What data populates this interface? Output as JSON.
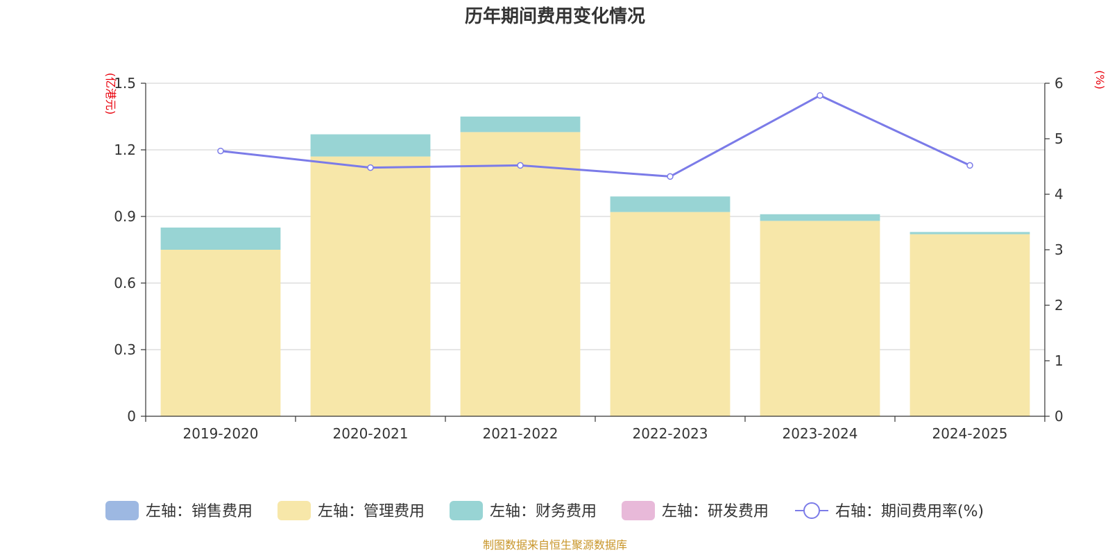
{
  "chart_data": {
    "type": "bar",
    "title": "历年期间费用变化情况",
    "categories": [
      "2019-2020",
      "2020-2021",
      "2021-2022",
      "2022-2023",
      "2023-2024",
      "2024-2025"
    ],
    "left_axis": {
      "unit": "(亿港元)",
      "ylim": [
        0,
        1.5
      ],
      "ticks": [
        "0",
        "0.3",
        "0.6",
        "0.9",
        "1.2",
        "1.5"
      ]
    },
    "right_axis": {
      "unit": "(%)",
      "ylim": [
        0,
        6
      ],
      "ticks": [
        "0",
        "1",
        "2",
        "3",
        "4",
        "5",
        "6"
      ]
    },
    "stacked": true,
    "grid": true,
    "legend_position": "bottom",
    "series": [
      {
        "name": "左轴：销售费用",
        "kind": "bar",
        "axis": "left",
        "color": "#9db8e2",
        "values": [
          0,
          0,
          0,
          0,
          0,
          0
        ]
      },
      {
        "name": "左轴：管理费用",
        "kind": "bar",
        "axis": "left",
        "color": "#f7e7a9",
        "values": [
          0.75,
          1.17,
          1.28,
          0.92,
          0.88,
          0.82
        ]
      },
      {
        "name": "左轴：财务费用",
        "kind": "bar",
        "axis": "left",
        "color": "#98d4d4",
        "values": [
          0.1,
          0.1,
          0.07,
          0.07,
          0.03,
          0.01
        ]
      },
      {
        "name": "左轴：研发费用",
        "kind": "bar",
        "axis": "left",
        "color": "#e8b9d9",
        "values": [
          0,
          0,
          0,
          0,
          0,
          0
        ]
      },
      {
        "name": "右轴：期间费用率(%)",
        "kind": "line",
        "axis": "right",
        "color": "#7b7be8",
        "values": [
          4.78,
          4.48,
          4.52,
          4.32,
          5.78,
          4.52
        ]
      }
    ],
    "source": "制图数据来自恒生聚源数据库"
  }
}
